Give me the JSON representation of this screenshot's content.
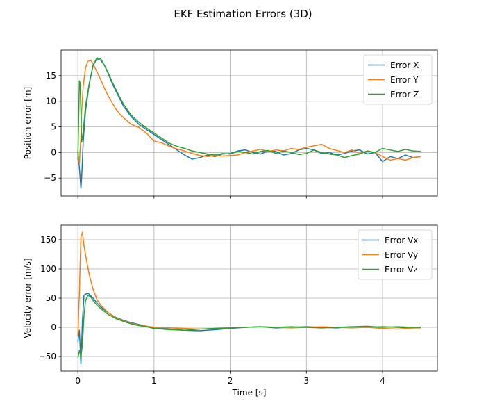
{
  "figure": {
    "title": "EKF Estimation Errors (3D)"
  },
  "colors": {
    "x": "#1f77b4",
    "y": "#ff7f0e",
    "z": "#2ca02c",
    "grid": "#b0b0b0",
    "axis": "#000000"
  },
  "chart_data": [
    {
      "type": "line",
      "title": "",
      "xlabel": "",
      "ylabel": "Position error [m]",
      "xlim": [
        -0.22,
        4.72
      ],
      "ylim": [
        -8.5,
        20.0
      ],
      "xticks": [
        0,
        1,
        2,
        3,
        4
      ],
      "xtick_labels": [
        "",
        "",
        "",
        "",
        ""
      ],
      "yticks": [
        -5,
        0,
        5,
        10,
        15
      ],
      "grid": true,
      "legend_position": "top-right",
      "series": [
        {
          "name": "Error X",
          "color": "#1f77b4",
          "x": [
            0,
            0.02,
            0.04,
            0.05,
            0.07,
            0.1,
            0.15,
            0.2,
            0.25,
            0.3,
            0.35,
            0.4,
            0.45,
            0.5,
            0.55,
            0.6,
            0.7,
            0.8,
            0.9,
            1.0,
            1.1,
            1.2,
            1.3,
            1.4,
            1.5,
            1.6,
            1.7,
            1.8,
            1.9,
            2.0,
            2.1,
            2.2,
            2.3,
            2.4,
            2.5,
            2.6,
            2.7,
            2.8,
            2.9,
            3.0,
            3.1,
            3.2,
            3.3,
            3.4,
            3.5,
            3.6,
            3.7,
            3.8,
            3.9,
            4.0,
            4.1,
            4.2,
            4.3,
            4.4,
            4.5
          ],
          "y": [
            0.5,
            -3.0,
            -7.0,
            -5.0,
            2.0,
            8.0,
            13.5,
            17.0,
            18.3,
            18.0,
            17.0,
            15.3,
            13.5,
            12.0,
            10.5,
            9.0,
            7.0,
            5.5,
            4.5,
            3.5,
            2.5,
            1.5,
            0.5,
            -0.5,
            -1.3,
            -1.0,
            -0.5,
            -0.8,
            -0.3,
            -0.2,
            0.3,
            0.5,
            0.0,
            -0.3,
            0.3,
            0.2,
            -0.5,
            -0.2,
            0.5,
            0.8,
            0.5,
            -0.2,
            0.0,
            -0.5,
            -0.2,
            0.3,
            0.5,
            -0.3,
            0.0,
            -1.8,
            -0.8,
            -1.2,
            -0.5,
            -1.0,
            -0.8
          ]
        },
        {
          "name": "Error Y",
          "color": "#ff7f0e",
          "x": [
            0,
            0.02,
            0.04,
            0.05,
            0.07,
            0.1,
            0.13,
            0.17,
            0.2,
            0.25,
            0.3,
            0.35,
            0.4,
            0.45,
            0.5,
            0.55,
            0.6,
            0.7,
            0.8,
            0.9,
            1.0,
            1.1,
            1.2,
            1.3,
            1.4,
            1.5,
            1.6,
            1.7,
            1.8,
            1.9,
            2.0,
            2.1,
            2.2,
            2.3,
            2.4,
            2.5,
            2.6,
            2.7,
            2.8,
            2.9,
            3.0,
            3.1,
            3.2,
            3.3,
            3.4,
            3.5,
            3.6,
            3.7,
            3.8,
            3.9,
            4.0,
            4.1,
            4.2,
            4.3,
            4.4,
            4.5
          ],
          "y": [
            0.0,
            -2.0,
            3.0,
            8.0,
            13.0,
            16.5,
            17.8,
            18.0,
            17.3,
            15.8,
            14.2,
            12.5,
            11.0,
            9.7,
            8.5,
            7.5,
            6.8,
            5.5,
            4.9,
            3.8,
            2.2,
            1.9,
            1.2,
            0.7,
            0.3,
            -0.2,
            -0.6,
            -0.8,
            -0.6,
            -0.7,
            -0.6,
            -0.5,
            0.0,
            0.3,
            0.6,
            0.2,
            0.5,
            0.3,
            0.8,
            0.6,
            1.0,
            1.3,
            1.6,
            0.8,
            0.4,
            0.0,
            0.5,
            -0.2,
            0.3,
            0.0,
            -0.8,
            -1.5,
            -1.2,
            -1.5,
            -1.0,
            -0.8
          ]
        },
        {
          "name": "Error Z",
          "color": "#2ca02c",
          "x": [
            0,
            0.02,
            0.03,
            0.05,
            0.07,
            0.1,
            0.15,
            0.2,
            0.25,
            0.3,
            0.35,
            0.4,
            0.45,
            0.5,
            0.55,
            0.6,
            0.7,
            0.8,
            0.9,
            1.0,
            1.1,
            1.2,
            1.3,
            1.4,
            1.5,
            1.6,
            1.7,
            1.8,
            1.9,
            2.0,
            2.1,
            2.2,
            2.3,
            2.4,
            2.5,
            2.6,
            2.7,
            2.8,
            2.9,
            3.0,
            3.1,
            3.2,
            3.3,
            3.4,
            3.5,
            3.6,
            3.7,
            3.8,
            3.9,
            4.0,
            4.1,
            4.2,
            4.3,
            4.4,
            4.5
          ],
          "y": [
            -1.5,
            14.0,
            13.5,
            2.0,
            4.0,
            9.0,
            13.5,
            17.0,
            18.5,
            18.3,
            17.0,
            15.5,
            13.8,
            12.3,
            10.8,
            9.4,
            7.3,
            5.9,
            4.8,
            3.8,
            2.8,
            1.8,
            1.2,
            0.8,
            0.3,
            0.0,
            -0.3,
            -0.5,
            -0.2,
            -0.3,
            0.2,
            0.0,
            -0.3,
            0.2,
            0.4,
            -0.2,
            0.3,
            0.0,
            -0.4,
            -0.2,
            0.5,
            0.0,
            -0.3,
            -0.5,
            -1.0,
            -0.6,
            -0.3,
            0.3,
            0.0,
            0.8,
            0.5,
            0.2,
            0.6,
            0.3,
            0.2
          ]
        }
      ]
    },
    {
      "type": "line",
      "title": "",
      "xlabel": "Time [s]",
      "ylabel": "Velocity error [m/s]",
      "xlim": [
        -0.22,
        4.72
      ],
      "ylim": [
        -75,
        175
      ],
      "xticks": [
        0,
        1,
        2,
        3,
        4
      ],
      "xtick_labels": [
        "0",
        "1",
        "2",
        "3",
        "4"
      ],
      "yticks": [
        -50,
        0,
        50,
        100,
        150
      ],
      "grid": true,
      "legend_position": "top-right",
      "series": [
        {
          "name": "Error Vx",
          "color": "#1f77b4",
          "x": [
            0,
            0.02,
            0.04,
            0.06,
            0.08,
            0.1,
            0.14,
            0.2,
            0.25,
            0.3,
            0.4,
            0.5,
            0.6,
            0.7,
            0.8,
            0.9,
            1.0,
            1.2,
            1.4,
            1.6,
            1.8,
            2.0,
            2.2,
            2.4,
            2.6,
            2.8,
            3.0,
            3.2,
            3.4,
            3.6,
            3.8,
            4.0,
            4.2,
            4.4,
            4.5
          ],
          "y": [
            -25,
            -5,
            -63,
            10,
            55,
            57,
            58,
            50,
            42,
            35,
            25,
            17,
            12,
            8,
            5,
            2,
            0,
            -3,
            -5,
            -6,
            -4,
            -2,
            0,
            1,
            -1,
            0,
            1,
            0,
            -1,
            1,
            0,
            1,
            0,
            -1,
            0
          ]
        },
        {
          "name": "Error Vy",
          "color": "#ff7f0e",
          "x": [
            0,
            0.02,
            0.04,
            0.06,
            0.08,
            0.1,
            0.12,
            0.15,
            0.2,
            0.25,
            0.3,
            0.4,
            0.5,
            0.6,
            0.7,
            0.8,
            0.9,
            1.0,
            1.2,
            1.4,
            1.6,
            1.8,
            2.0,
            2.2,
            2.4,
            2.6,
            2.8,
            3.0,
            3.2,
            3.4,
            3.6,
            3.8,
            4.0,
            4.2,
            4.4,
            4.5
          ],
          "y": [
            -15,
            60,
            155,
            163,
            140,
            125,
            110,
            90,
            65,
            48,
            38,
            25,
            16,
            11,
            7,
            4,
            2,
            0,
            -1,
            -2,
            -3,
            -2,
            -1,
            0,
            1,
            0,
            -1,
            0,
            1,
            0,
            -1,
            0,
            -2,
            -3,
            -1,
            -1
          ]
        },
        {
          "name": "Error Vz",
          "color": "#2ca02c",
          "x": [
            0,
            0.02,
            0.04,
            0.06,
            0.08,
            0.1,
            0.13,
            0.17,
            0.2,
            0.25,
            0.3,
            0.4,
            0.5,
            0.6,
            0.7,
            0.8,
            0.9,
            1.0,
            1.2,
            1.4,
            1.6,
            1.8,
            2.0,
            2.2,
            2.4,
            2.6,
            2.8,
            3.0,
            3.2,
            3.4,
            3.6,
            3.8,
            4.0,
            4.2,
            4.4,
            4.5
          ],
          "y": [
            -52,
            -40,
            -50,
            -30,
            20,
            45,
            55,
            52,
            46,
            38,
            32,
            22,
            15,
            10,
            6,
            3,
            1,
            -2,
            -4,
            -5,
            -3,
            -2,
            -1,
            0,
            1,
            0,
            1,
            0,
            -1,
            0,
            1,
            2,
            0,
            1,
            0,
            0
          ]
        }
      ]
    }
  ]
}
